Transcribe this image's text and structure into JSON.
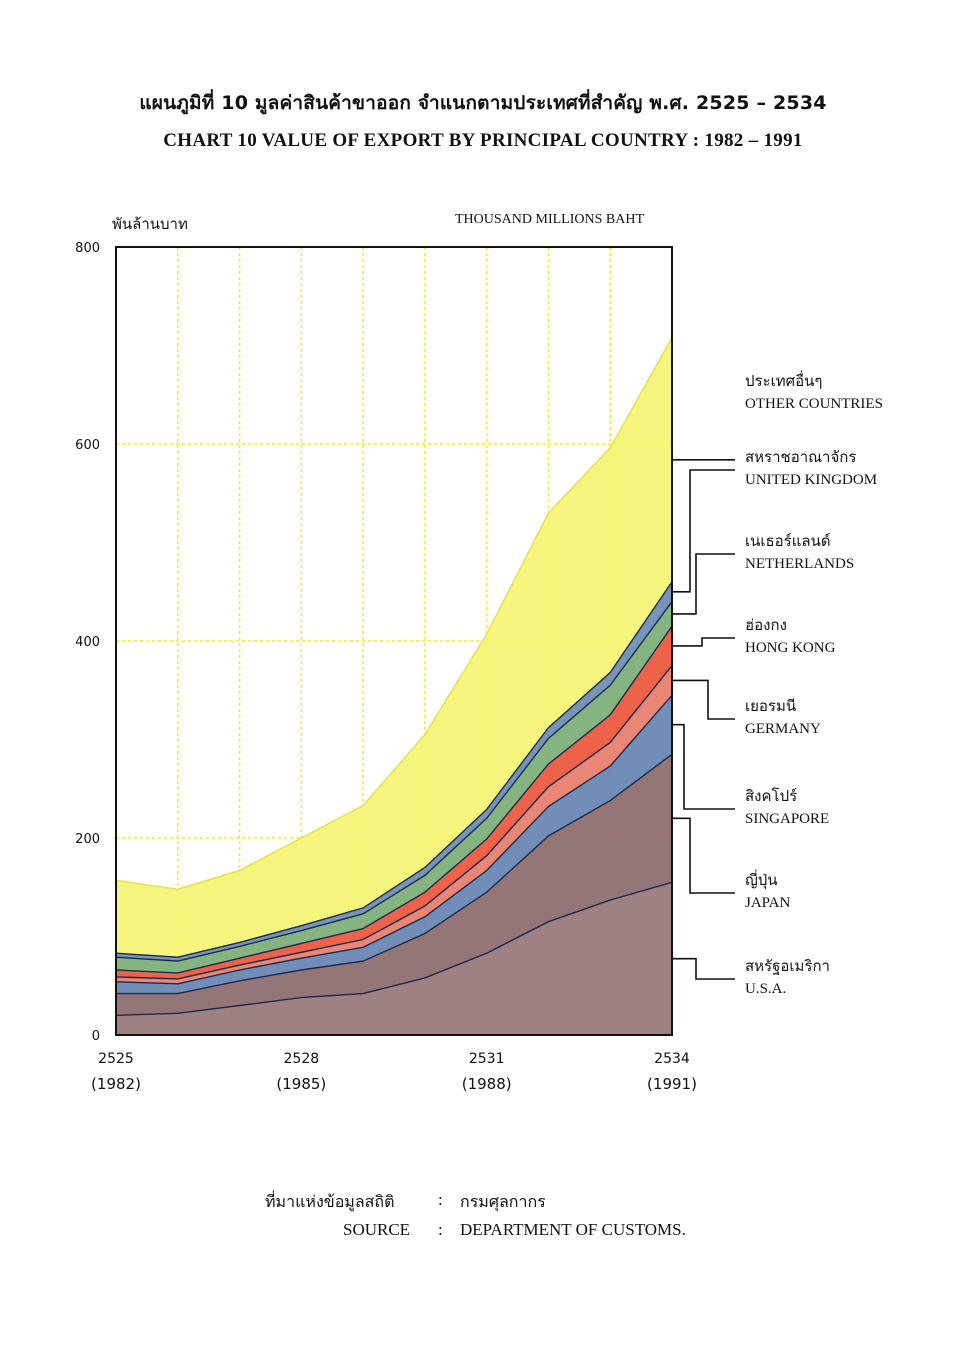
{
  "title_th": "แผนภูมิที่ 10 มูลค่าสินค้าขาออก จำแนกตามประเทศที่สำคัญ พ.ศ. 2525 – 2534",
  "title_en": "CHART 10 VALUE OF EXPORT BY PRINCIPAL COUNTRY : 1982 – 1991",
  "unit_th": "พันล้านบาท",
  "unit_en": "THOUSAND MILLIONS BAHT",
  "source": {
    "label_th": "ที่มาแห่งข้อมูลสถิติ",
    "label_en": "SOURCE",
    "sep": ":",
    "value_th": "กรมศุลกากร",
    "value_en": "DEPARTMENT OF CUSTOMS."
  },
  "chart_data": {
    "type": "area",
    "stacked": true,
    "x": [
      1982,
      1983,
      1984,
      1985,
      1986,
      1987,
      1988,
      1989,
      1990,
      1991
    ],
    "xticks": [
      {
        "x": 1982,
        "top": "2525",
        "bottom": "(1982)"
      },
      {
        "x": 1985,
        "top": "2528",
        "bottom": "(1985)"
      },
      {
        "x": 1988,
        "top": "2531",
        "bottom": "(1988)"
      },
      {
        "x": 1991,
        "top": "2534",
        "bottom": "(1991)"
      }
    ],
    "yticks": [
      0,
      200,
      400,
      600,
      800
    ],
    "ylim": [
      0,
      800
    ],
    "xlim": [
      1982,
      1991
    ],
    "grid": true,
    "grid_color": "#f2ea2a",
    "series": [
      {
        "name_th": "สหรัฐอเมริกา",
        "name_en": "U.S.A.",
        "color": "#9a7a7c",
        "values": [
          20,
          22,
          30,
          38,
          42,
          58,
          83,
          115,
          137,
          155
        ]
      },
      {
        "name_th": "ญี่ปุ่น",
        "name_en": "JAPAN",
        "color": "#8f6f71",
        "values": [
          22,
          20,
          25,
          28,
          33,
          45,
          62,
          87,
          101,
          130
        ]
      },
      {
        "name_th": "สิงคโปร์",
        "name_en": "SINGAPORE",
        "color": "#6a87b3",
        "values": [
          12,
          10,
          11,
          12,
          14,
          17,
          22,
          30,
          35,
          60
        ]
      },
      {
        "name_th": "เยอรมนี",
        "name_en": "GERMANY",
        "color": "#e8806e",
        "values": [
          5,
          5,
          5,
          6,
          8,
          11,
          15,
          20,
          24,
          30
        ]
      },
      {
        "name_th": "ฮ่องกง",
        "name_en": "HONG KONG",
        "color": "#ec5a3e",
        "values": [
          7,
          6,
          7,
          9,
          11,
          14,
          17,
          23,
          28,
          40
        ]
      },
      {
        "name_th": "เนเธอร์แลนด์",
        "name_en": "NETHERLANDS",
        "color": "#7eaf7a",
        "values": [
          13,
          12,
          12,
          13,
          15,
          17,
          21,
          26,
          30,
          25
        ]
      },
      {
        "name_th": "สหราชอาณาจักร",
        "name_en": "UNITED KINGDOM",
        "color": "#6f8fb5",
        "values": [
          4,
          4,
          4,
          5,
          6,
          8,
          9,
          11,
          13,
          20
        ]
      },
      {
        "name_th": "ประเทศอื่นๆ",
        "name_en": "OTHER COUNTRIES",
        "color": "#f6f577",
        "values": [
          74,
          69,
          73,
          89,
          104,
          135,
          178,
          218,
          228,
          248
        ]
      }
    ]
  }
}
